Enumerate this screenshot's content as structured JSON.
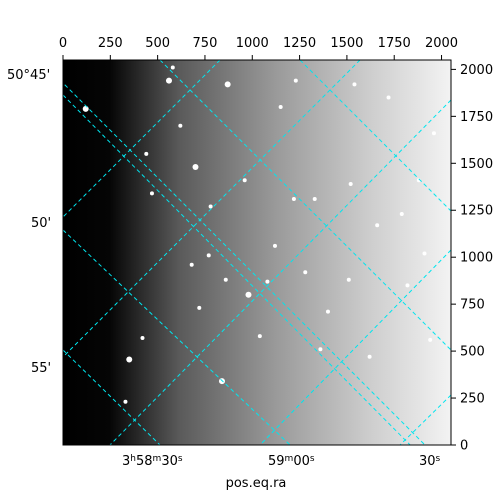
{
  "chart_data": {
    "type": "heatmap",
    "xlabel": "pos.eq.ra",
    "pixel_axes": {
      "x_ticks": [
        0,
        250,
        500,
        750,
        1000,
        1250,
        1500,
        1750,
        2000
      ],
      "y_ticks": [
        0,
        250,
        500,
        750,
        1000,
        1250,
        1500,
        1750,
        2000
      ],
      "x_range": [
        0,
        2050
      ],
      "y_range": [
        0,
        2050
      ]
    },
    "world_axes": {
      "dec_labels": [
        "50°45'",
        "50'",
        "55'"
      ],
      "ra_labels": [
        {
          "h": "3",
          "m": "58",
          "s": "30",
          "format": "hms"
        },
        {
          "m": "59",
          "s": "00",
          "format": "ms"
        },
        {
          "s": "30",
          "format": "s"
        }
      ]
    },
    "grid": true,
    "grid_color": "#00e5ee",
    "image": {
      "colormap": "grayscale",
      "gradient": "dark left to bright right",
      "stars": [
        {
          "x": 120,
          "y": 1790,
          "r": 3
        },
        {
          "x": 330,
          "y": 230,
          "r": 2
        },
        {
          "x": 350,
          "y": 455,
          "r": 3
        },
        {
          "x": 420,
          "y": 570,
          "r": 2
        },
        {
          "x": 440,
          "y": 1550,
          "r": 2
        },
        {
          "x": 470,
          "y": 1340,
          "r": 2
        },
        {
          "x": 560,
          "y": 1940,
          "r": 3
        },
        {
          "x": 580,
          "y": 2010,
          "r": 2
        },
        {
          "x": 620,
          "y": 1700,
          "r": 2
        },
        {
          "x": 700,
          "y": 1480,
          "r": 3
        },
        {
          "x": 680,
          "y": 960,
          "r": 2
        },
        {
          "x": 720,
          "y": 730,
          "r": 2
        },
        {
          "x": 770,
          "y": 1010,
          "r": 2
        },
        {
          "x": 780,
          "y": 1270,
          "r": 2
        },
        {
          "x": 840,
          "y": 340,
          "r": 3
        },
        {
          "x": 860,
          "y": 880,
          "r": 2
        },
        {
          "x": 870,
          "y": 1920,
          "r": 3
        },
        {
          "x": 960,
          "y": 1410,
          "r": 2
        },
        {
          "x": 980,
          "y": 800,
          "r": 3
        },
        {
          "x": 1040,
          "y": 580,
          "r": 2
        },
        {
          "x": 1080,
          "y": 870,
          "r": 2
        },
        {
          "x": 1150,
          "y": 1800,
          "r": 2
        },
        {
          "x": 1120,
          "y": 1060,
          "r": 2
        },
        {
          "x": 1230,
          "y": 1940,
          "r": 2
        },
        {
          "x": 1220,
          "y": 1310,
          "r": 2
        },
        {
          "x": 1280,
          "y": 920,
          "r": 2
        },
        {
          "x": 1330,
          "y": 1310,
          "r": 2
        },
        {
          "x": 1360,
          "y": 510,
          "r": 2
        },
        {
          "x": 1400,
          "y": 710,
          "r": 2
        },
        {
          "x": 1510,
          "y": 880,
          "r": 2
        },
        {
          "x": 1520,
          "y": 1390,
          "r": 2
        },
        {
          "x": 1540,
          "y": 1920,
          "r": 2
        },
        {
          "x": 1620,
          "y": 470,
          "r": 2
        },
        {
          "x": 1660,
          "y": 1170,
          "r": 2
        },
        {
          "x": 1720,
          "y": 1850,
          "r": 2
        },
        {
          "x": 1790,
          "y": 1230,
          "r": 2
        },
        {
          "x": 1820,
          "y": 850,
          "r": 2
        },
        {
          "x": 1880,
          "y": 1410,
          "r": 2
        },
        {
          "x": 1910,
          "y": 1020,
          "r": 2
        },
        {
          "x": 1940,
          "y": 560,
          "r": 2
        },
        {
          "x": 1960,
          "y": 1660,
          "r": 2
        }
      ]
    }
  }
}
